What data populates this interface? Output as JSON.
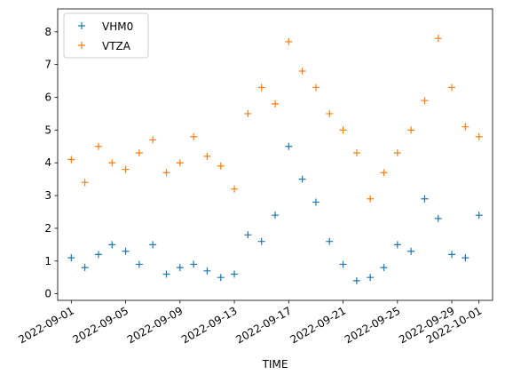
{
  "chart_data": {
    "type": "scatter",
    "marker": "+",
    "xlabel": "TIME",
    "x": [
      "2022-09-01",
      "2022-09-02",
      "2022-09-03",
      "2022-09-04",
      "2022-09-05",
      "2022-09-06",
      "2022-09-07",
      "2022-09-08",
      "2022-09-09",
      "2022-09-10",
      "2022-09-11",
      "2022-09-12",
      "2022-09-13",
      "2022-09-14",
      "2022-09-15",
      "2022-09-16",
      "2022-09-17",
      "2022-09-18",
      "2022-09-19",
      "2022-09-20",
      "2022-09-21",
      "2022-09-22",
      "2022-09-23",
      "2022-09-24",
      "2022-09-25",
      "2022-09-26",
      "2022-09-27",
      "2022-09-28",
      "2022-09-29",
      "2022-09-30",
      "2022-10-01"
    ],
    "series": [
      {
        "name": "VHM0",
        "color": "#1f77b4",
        "values": [
          1.1,
          0.8,
          1.2,
          1.5,
          1.3,
          0.9,
          1.5,
          0.6,
          0.8,
          0.9,
          0.7,
          0.5,
          0.6,
          1.8,
          1.6,
          2.4,
          4.5,
          3.5,
          2.8,
          1.6,
          0.9,
          0.4,
          0.5,
          0.8,
          1.5,
          1.3,
          2.9,
          2.3,
          1.2,
          1.1,
          2.4
        ]
      },
      {
        "name": "VTZA",
        "color": "#ff7f0e",
        "values": [
          4.1,
          3.4,
          4.5,
          4.0,
          3.8,
          4.3,
          4.7,
          3.7,
          4.0,
          4.8,
          4.2,
          3.9,
          3.2,
          5.5,
          6.3,
          5.8,
          7.7,
          6.8,
          6.3,
          5.5,
          5.0,
          4.3,
          2.9,
          3.7,
          4.3,
          5.0,
          5.9,
          7.8,
          6.3,
          5.1,
          4.8
        ]
      }
    ],
    "xlim": [
      "2022-08-31",
      "2022-10-02"
    ],
    "xticks": [
      "2022-09-01",
      "2022-09-05",
      "2022-09-09",
      "2022-09-13",
      "2022-09-17",
      "2022-09-21",
      "2022-09-25",
      "2022-09-29",
      "2022-10-01"
    ],
    "ylim": [
      -0.2,
      8.7
    ],
    "yticks": [
      0,
      1,
      2,
      3,
      4,
      5,
      6,
      7,
      8
    ],
    "legend": "upper left"
  }
}
